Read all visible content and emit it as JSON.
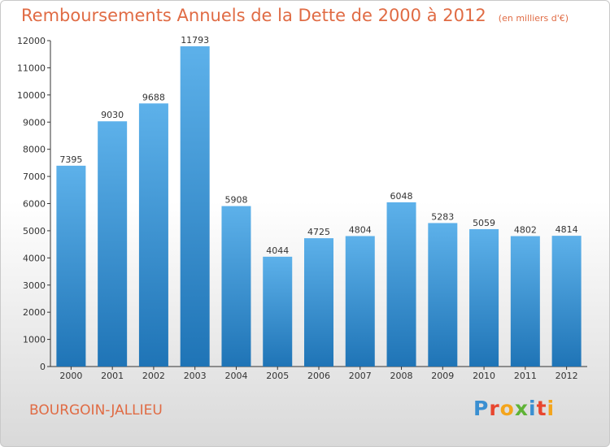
{
  "chart_data": {
    "type": "bar",
    "title": "Remboursements Annuels de la Dette de 2000 à 2012",
    "subtitle": "(en milliers d'€)",
    "categories": [
      "2000",
      "2001",
      "2002",
      "2003",
      "2004",
      "2005",
      "2006",
      "2007",
      "2008",
      "2009",
      "2010",
      "2011",
      "2012"
    ],
    "values": [
      7395,
      9030,
      9688,
      11793,
      5908,
      4044,
      4725,
      4804,
      6048,
      5283,
      5059,
      4802,
      4814
    ],
    "ylim": [
      0,
      12000
    ],
    "yticks": [
      0,
      1000,
      2000,
      3000,
      4000,
      5000,
      6000,
      7000,
      8000,
      9000,
      10000,
      11000,
      12000
    ],
    "grid": false,
    "bar_color": "#2f86c8"
  },
  "footer": {
    "city": "BOURGOIN-JALLIEU",
    "logo": "Proxiti"
  }
}
